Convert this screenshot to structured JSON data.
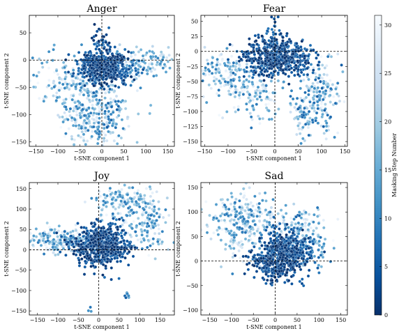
{
  "figure": {
    "colorbar": {
      "label": "Masking Step Number",
      "range": [
        0,
        31
      ],
      "ticks": [
        0,
        5,
        10,
        15,
        20,
        25,
        30
      ],
      "cmap": [
        "#08306b",
        "#08519c",
        "#2171b5",
        "#4292c6",
        "#6baed6",
        "#9ecae1",
        "#c6dbef",
        "#deebf7",
        "#f7fbff"
      ]
    }
  },
  "chart_data": [
    {
      "type": "scatter",
      "title": "Anger",
      "xlabel": "t-SNE component 1",
      "ylabel": "t-SNE component 2",
      "xlim": [
        -165,
        165
      ],
      "ylim": [
        -158,
        82
      ],
      "xticks": [
        -150,
        -100,
        -50,
        0,
        50,
        100,
        150
      ],
      "yticks": [
        -150,
        -100,
        -50,
        0,
        50
      ],
      "reference_lines": {
        "x": 0,
        "y": 0
      },
      "clusters": [
        {
          "cx": 5,
          "cy": -12,
          "sx": 28,
          "sy": 15,
          "n": 520,
          "step_min": 0,
          "step_max": 8
        },
        {
          "cx": 60,
          "cy": -15,
          "sx": 30,
          "sy": 15,
          "n": 90,
          "step_min": 5,
          "step_max": 30
        },
        {
          "cx": 110,
          "cy": 0,
          "sx": 30,
          "sy": 12,
          "n": 70,
          "step_min": 10,
          "step_max": 31
        },
        {
          "cx": -40,
          "cy": -70,
          "sx": 35,
          "sy": 25,
          "n": 170,
          "step_min": 8,
          "step_max": 31
        },
        {
          "cx": -20,
          "cy": -120,
          "sx": 30,
          "sy": 18,
          "n": 140,
          "step_min": 8,
          "step_max": 31
        },
        {
          "cx": -100,
          "cy": -30,
          "sx": 30,
          "sy": 25,
          "n": 80,
          "step_min": 10,
          "step_max": 31
        },
        {
          "cx": 25,
          "cy": -95,
          "sx": 22,
          "sy": 25,
          "n": 80,
          "step_min": 5,
          "step_max": 28
        },
        {
          "cx": 0,
          "cy": 40,
          "sx": 10,
          "sy": 15,
          "n": 25,
          "step_min": 0,
          "step_max": 10
        }
      ]
    },
    {
      "type": "scatter",
      "title": "Fear",
      "xlabel": "t-SNE component 1",
      "ylabel": "t-SNE component 2",
      "xlim": [
        -158,
        155
      ],
      "ylim": [
        -158,
        60
      ],
      "xticks": [
        -150,
        -100,
        -50,
        0,
        50,
        100,
        150
      ],
      "yticks": [
        -150,
        -125,
        -100,
        -75,
        -50,
        -25,
        0,
        25,
        50
      ],
      "reference_lines": {
        "x": 0,
        "y": 0
      },
      "clusters": [
        {
          "cx": 5,
          "cy": -10,
          "sx": 35,
          "sy": 15,
          "n": 560,
          "step_min": 0,
          "step_max": 8
        },
        {
          "cx": -100,
          "cy": -40,
          "sx": 35,
          "sy": 22,
          "n": 170,
          "step_min": 8,
          "step_max": 31
        },
        {
          "cx": -40,
          "cy": -70,
          "sx": 25,
          "sy": 25,
          "n": 100,
          "step_min": 8,
          "step_max": 31
        },
        {
          "cx": 95,
          "cy": -70,
          "sx": 25,
          "sy": 30,
          "n": 180,
          "step_min": 5,
          "step_max": 31
        },
        {
          "cx": 60,
          "cy": -110,
          "sx": 12,
          "sy": 20,
          "n": 60,
          "step_min": 5,
          "step_max": 28
        },
        {
          "cx": 0,
          "cy": 30,
          "sx": 8,
          "sy": 12,
          "n": 30,
          "step_min": 0,
          "step_max": 8
        }
      ]
    },
    {
      "type": "scatter",
      "title": "Joy",
      "xlabel": "t-SNE component 1",
      "ylabel": "t-SNE component 2",
      "xlim": [
        -170,
        185
      ],
      "ylim": [
        -160,
        165
      ],
      "xticks": [
        -150,
        -100,
        -50,
        0,
        50,
        100,
        150
      ],
      "yticks": [
        -150,
        -100,
        -50,
        0,
        50,
        100,
        150
      ],
      "reference_lines": {
        "x": 0,
        "y": 0
      },
      "clusters": [
        {
          "cx": 0,
          "cy": 15,
          "sx": 30,
          "sy": 25,
          "n": 480,
          "step_min": 0,
          "step_max": 8
        },
        {
          "cx": -95,
          "cy": 22,
          "sx": 45,
          "sy": 15,
          "n": 220,
          "step_min": 8,
          "step_max": 31
        },
        {
          "cx": 55,
          "cy": 120,
          "sx": 35,
          "sy": 18,
          "n": 130,
          "step_min": 8,
          "step_max": 31
        },
        {
          "cx": 120,
          "cy": 65,
          "sx": 25,
          "sy": 35,
          "n": 150,
          "step_min": 8,
          "step_max": 31
        },
        {
          "cx": 55,
          "cy": 5,
          "sx": 20,
          "sy": 15,
          "n": 60,
          "step_min": 0,
          "step_max": 6
        },
        {
          "cx": 0,
          "cy": 0,
          "sx": 30,
          "sy": 20,
          "n": 70,
          "step_min": 0,
          "step_max": 4
        },
        {
          "cx": 70,
          "cy": -115,
          "sx": 4,
          "sy": 5,
          "n": 8,
          "step_min": 5,
          "step_max": 15
        },
        {
          "cx": -20,
          "cy": -148,
          "sx": 3,
          "sy": 3,
          "n": 3,
          "step_min": 8,
          "step_max": 14
        }
      ]
    },
    {
      "type": "scatter",
      "title": "Sad",
      "xlabel": "t-SNE component 1",
      "ylabel": "t-SNE component 2",
      "xlim": [
        -170,
        165
      ],
      "ylim": [
        -110,
        160
      ],
      "xticks": [
        -150,
        -100,
        -50,
        0,
        50,
        100,
        150
      ],
      "yticks": [
        -100,
        -50,
        0,
        50,
        100,
        150
      ],
      "reference_lines": {
        "x": 0,
        "y": 0
      },
      "clusters": [
        {
          "cx": 20,
          "cy": 15,
          "sx": 28,
          "sy": 22,
          "n": 520,
          "step_min": 0,
          "step_max": 8
        },
        {
          "cx": -70,
          "cy": 80,
          "sx": 40,
          "sy": 30,
          "n": 300,
          "step_min": 8,
          "step_max": 31
        },
        {
          "cx": 55,
          "cy": 60,
          "sx": 30,
          "sy": 25,
          "n": 150,
          "step_min": 5,
          "step_max": 31
        },
        {
          "cx": -30,
          "cy": 0,
          "sx": 18,
          "sy": 12,
          "n": 60,
          "step_min": 0,
          "step_max": 8
        },
        {
          "cx": 80,
          "cy": 20,
          "sx": 20,
          "sy": 15,
          "n": 50,
          "step_min": 3,
          "step_max": 20
        },
        {
          "cx": 0,
          "cy": -20,
          "sx": 20,
          "sy": 12,
          "n": 60,
          "step_min": 0,
          "step_max": 6
        }
      ]
    }
  ]
}
